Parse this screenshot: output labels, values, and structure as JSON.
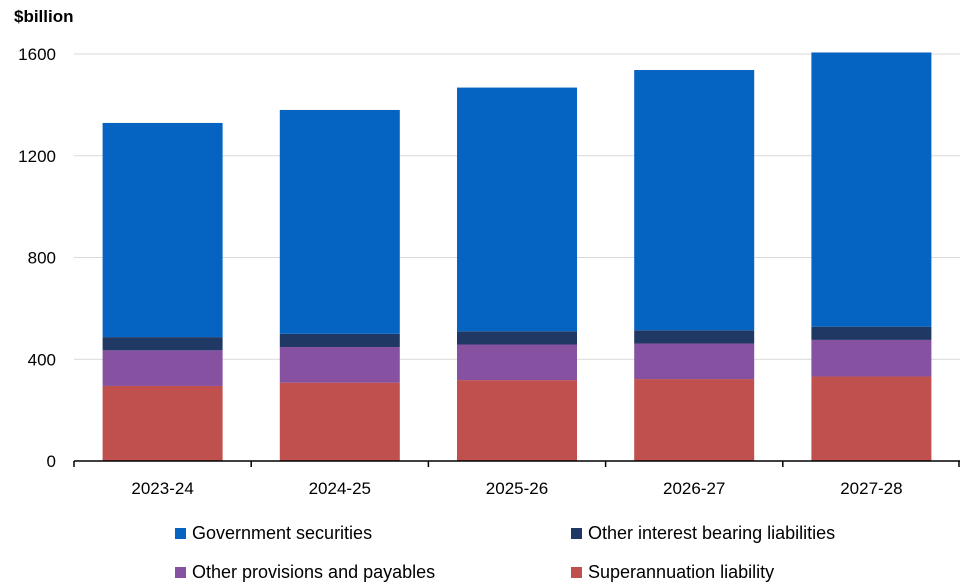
{
  "chart_data": {
    "type": "bar",
    "stacked": true,
    "ylabel": "$billion",
    "ylim": [
      0,
      1600
    ],
    "yticks": [
      0,
      400,
      800,
      1200,
      1600
    ],
    "categories": [
      "2023-24",
      "2024-25",
      "2025-26",
      "2026-27",
      "2027-28"
    ],
    "series": [
      {
        "name": "Superannuation liability",
        "color": "#c0504d",
        "values": [
          295,
          308,
          318,
          322,
          332
        ]
      },
      {
        "name": "Other provisions and payables",
        "color": "#8751a1",
        "values": [
          140,
          140,
          140,
          140,
          144
        ]
      },
      {
        "name": "Other interest bearing liabilities",
        "color": "#203864",
        "values": [
          52,
          52,
          52,
          52,
          52
        ]
      },
      {
        "name": "Government securities",
        "color": "#0563c1",
        "values": [
          842,
          880,
          958,
          1023,
          1078
        ]
      }
    ],
    "gridlines": true,
    "legend_position": "bottom",
    "legend_order": [
      "Government securities",
      "Other interest bearing liabilities",
      "Other provisions and payables",
      "Superannuation liability"
    ]
  }
}
